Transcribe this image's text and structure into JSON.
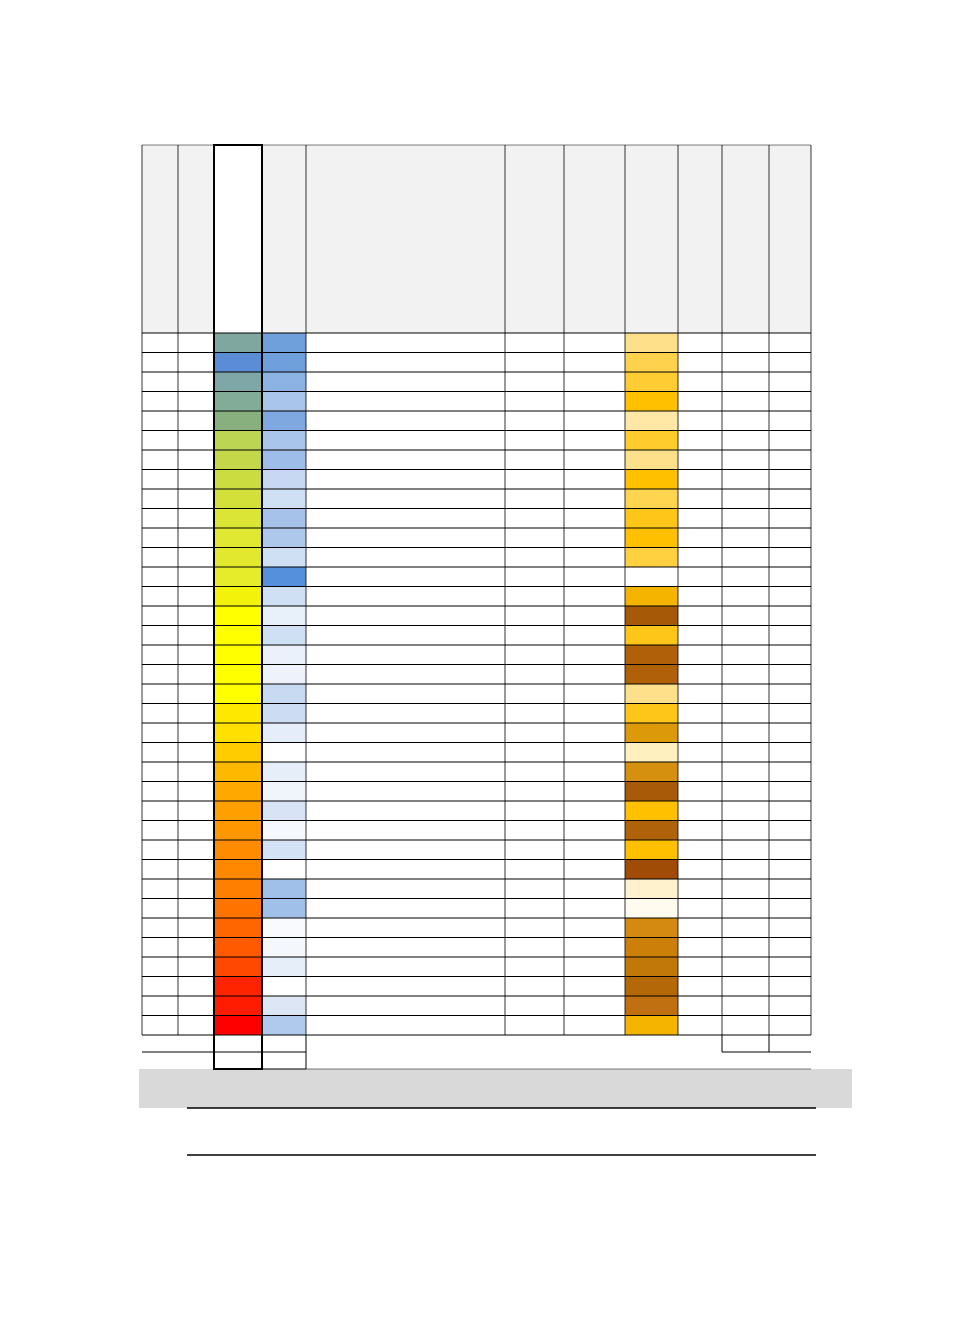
{
  "table": {
    "rows": [
      [
        "#7fa7a0",
        "#6fa0dc",
        "#ffe08a"
      ],
      [
        "#5b8dd6",
        "#6fa0dc",
        "#ffd24d"
      ],
      [
        "#7fa7a8",
        "#8db2e4",
        "#ffcc33"
      ],
      [
        "#82ab98",
        "#aac5ec",
        "#ffc000"
      ],
      [
        "#88b07e",
        "#7fa8e0",
        "#ffe8a6"
      ],
      [
        "#bcd552",
        "#aac5ec",
        "#ffcc2e"
      ],
      [
        "#c3d748",
        "#9ebde8",
        "#ffe08a"
      ],
      [
        "#cadc40",
        "#c6d8f2",
        "#ffc000"
      ],
      [
        "#d3e03a",
        "#d0e0f4",
        "#ffd54f"
      ],
      [
        "#dbe535",
        "#a6c2ea",
        "#ffc61a"
      ],
      [
        "#e0e832",
        "#aec8ec",
        "#ffc000"
      ],
      [
        "#e2e82e",
        "#d0e0f4",
        "#ffd040"
      ],
      [
        "#e6eb2a",
        "#5590dc",
        "#ffffff"
      ],
      [
        "#f2f20a",
        "#d0e0f4",
        "#f5b400"
      ],
      [
        "#ffff00",
        "#e8f0fa",
        "#a65a08"
      ],
      [
        "#ffff00",
        "#d0e0f4",
        "#ffc61a"
      ],
      [
        "#ffff00",
        "#eaf1fb",
        "#b06008"
      ],
      [
        "#ffff00",
        "#eef3fb",
        "#b06008"
      ],
      [
        "#ffff00",
        "#c8daf2",
        "#ffe08a"
      ],
      [
        "#ffe800",
        "#ccdcf2",
        "#ffc61a"
      ],
      [
        "#ffe000",
        "#e4edf9",
        "#dc9a0a"
      ],
      [
        "#ffcc00",
        "#ffffff",
        "#fff0c0"
      ],
      [
        "#ffb800",
        "#e6eefa",
        "#d69010"
      ],
      [
        "#ffa800",
        "#f0f5fc",
        "#a85a08"
      ],
      [
        "#ffa000",
        "#d8e4f5",
        "#ffc000"
      ],
      [
        "#ff9800",
        "#f5f8fd",
        "#b0620a"
      ],
      [
        "#ff8c00",
        "#d4e2f5",
        "#ffc000"
      ],
      [
        "#ff8800",
        "#ffffff",
        "#a04c06"
      ],
      [
        "#ff8000",
        "#a0c0ea",
        "#fff2cc"
      ],
      [
        "#ff7400",
        "#a0c0ea",
        "#fffbee"
      ],
      [
        "#ff6600",
        "#f8fafd",
        "#d48a10"
      ],
      [
        "#ff5a00",
        "#f4f7fc",
        "#cc800a"
      ],
      [
        "#ff4800",
        "#e6eefa",
        "#c27808"
      ],
      [
        "#ff2400",
        "#ffffff",
        "#b46808"
      ],
      [
        "#ff1c00",
        "#dce6f5",
        "#c07010"
      ],
      [
        "#ff0000",
        "#b0caee",
        "#f5b400"
      ]
    ]
  }
}
